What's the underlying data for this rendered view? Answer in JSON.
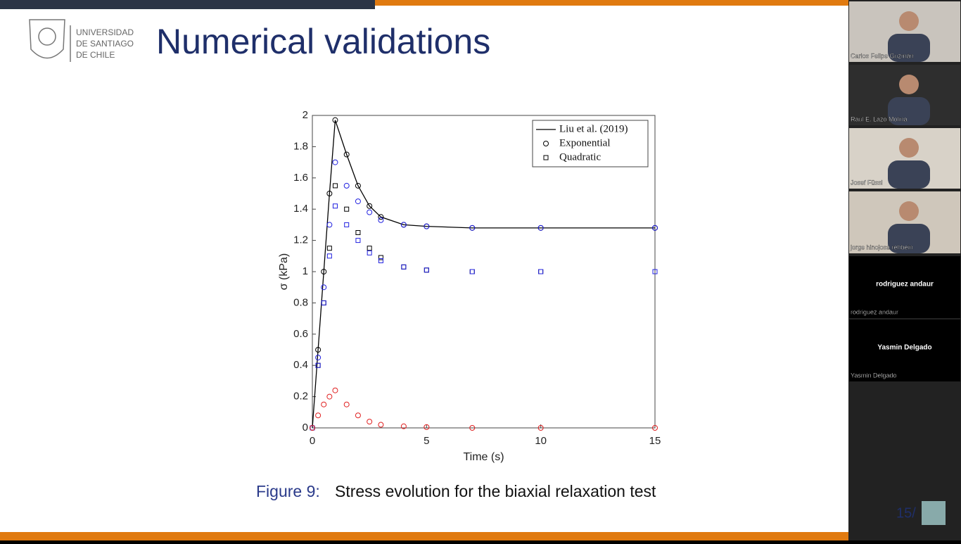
{
  "slide": {
    "university": [
      "UNIVERSIDAD",
      "DE SANTIAGO",
      "DE CHILE"
    ],
    "title": "Numerical validations",
    "caption_label": "Figure 9:",
    "caption": "Stress evolution for the biaxial relaxation test",
    "page": "15/"
  },
  "chart_data": {
    "type": "line",
    "xlabel": "Time (s)",
    "ylabel": "σ (kPa)",
    "xlim": [
      0,
      15
    ],
    "xticks": [
      0,
      5,
      10,
      15
    ],
    "ylim": [
      0,
      2
    ],
    "yticks": [
      0,
      0.2,
      0.4,
      0.6,
      0.8,
      1,
      1.2,
      1.4,
      1.6,
      1.8,
      2
    ],
    "x": [
      0,
      0.25,
      0.5,
      0.75,
      1,
      1.5,
      2,
      2.5,
      3,
      4,
      5,
      7,
      10,
      15
    ],
    "legend": [
      {
        "name": "Liu et al. (2019)",
        "marker": "line"
      },
      {
        "name": "Exponential",
        "marker": "circle"
      },
      {
        "name": "Quadratic",
        "marker": "square"
      }
    ],
    "curves": [
      {
        "color": "#000000",
        "marker": "line",
        "values": [
          0,
          0.5,
          1.0,
          1.5,
          1.97,
          1.75,
          1.55,
          1.42,
          1.35,
          1.3,
          1.29,
          1.28,
          1.28,
          1.28
        ]
      },
      {
        "color": "#000000",
        "marker": "circle",
        "values": [
          0,
          0.5,
          1.0,
          1.5,
          1.97,
          1.75,
          1.55,
          1.42,
          1.35,
          1.3,
          1.29,
          1.28,
          1.28,
          1.28
        ]
      },
      {
        "color": "#000000",
        "marker": "square",
        "values": [
          0,
          0.4,
          0.8,
          1.15,
          1.55,
          1.4,
          1.25,
          1.15,
          1.09,
          1.03,
          1.01,
          1.0,
          1.0,
          1.0
        ]
      },
      {
        "color": "#2020e0",
        "marker": "circle",
        "values": [
          0,
          0.45,
          0.9,
          1.3,
          1.7,
          1.55,
          1.45,
          1.38,
          1.33,
          1.3,
          1.29,
          1.28,
          1.28,
          1.28
        ]
      },
      {
        "color": "#2020e0",
        "marker": "square",
        "values": [
          0,
          0.4,
          0.8,
          1.1,
          1.42,
          1.3,
          1.2,
          1.12,
          1.07,
          1.03,
          1.01,
          1.0,
          1.0,
          1.0
        ]
      },
      {
        "color": "#e02020",
        "marker": "circle",
        "values": [
          0,
          0.08,
          0.15,
          0.2,
          0.24,
          0.15,
          0.08,
          0.04,
          0.02,
          0.01,
          0.005,
          0,
          0,
          0
        ]
      }
    ]
  },
  "participants": [
    {
      "name": "Carlos Felipe Guzmán"
    },
    {
      "name": "Raul E. Lazo Molina"
    },
    {
      "name": "Josef Füssl"
    },
    {
      "name": "jorge hinojosa rehbein"
    },
    {
      "name": "rodriguez andaur"
    },
    {
      "name": "Yasmin Delgado"
    }
  ]
}
